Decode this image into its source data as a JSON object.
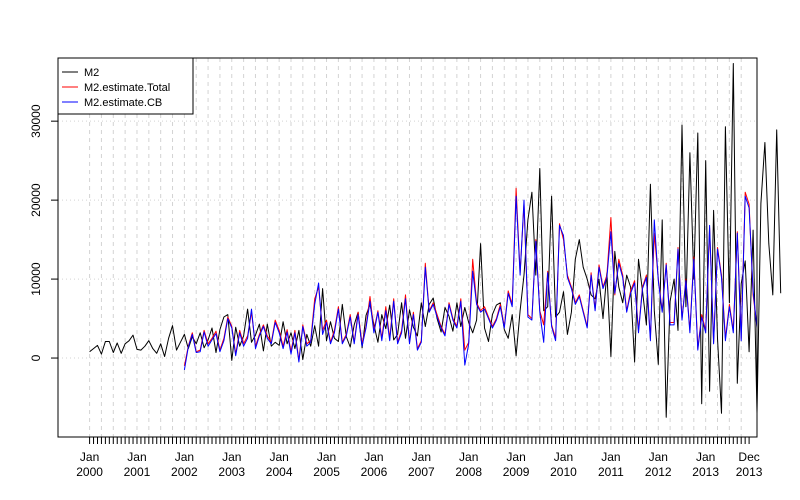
{
  "chart_data": {
    "type": "line",
    "title": "",
    "xlabel": "",
    "ylabel": "",
    "x_start": "2000-01",
    "x_end": "2013-12",
    "frequency": "monthly",
    "ylim": [
      -10000,
      38000
    ],
    "yticks": [
      0,
      10000,
      20000,
      30000
    ],
    "ytick_labels": [
      "0",
      "10000",
      "20000",
      "30000"
    ],
    "xtick_labels": [
      {
        "date": "2000-01",
        "month": "Jan",
        "year": "2000"
      },
      {
        "date": "2001-01",
        "month": "Jan",
        "year": "2001"
      },
      {
        "date": "2002-01",
        "month": "Jan",
        "year": "2002"
      },
      {
        "date": "2003-01",
        "month": "Jan",
        "year": "2003"
      },
      {
        "date": "2004-01",
        "month": "Jan",
        "year": "2004"
      },
      {
        "date": "2005-01",
        "month": "Jan",
        "year": "2005"
      },
      {
        "date": "2006-01",
        "month": "Jan",
        "year": "2006"
      },
      {
        "date": "2007-01",
        "month": "Jan",
        "year": "2007"
      },
      {
        "date": "2008-01",
        "month": "Jan",
        "year": "2008"
      },
      {
        "date": "2009-01",
        "month": "Jan",
        "year": "2009"
      },
      {
        "date": "2010-01",
        "month": "Jan",
        "year": "2010"
      },
      {
        "date": "2011-01",
        "month": "Jan",
        "year": "2011"
      },
      {
        "date": "2012-01",
        "month": "Jan",
        "year": "2012"
      },
      {
        "date": "2013-01",
        "month": "Jan",
        "year": "2013"
      },
      {
        "date": "2013-12",
        "month": "Dec",
        "year": "2013"
      }
    ],
    "grid": true,
    "legend_position": "top-left",
    "series": [
      {
        "name": "M2",
        "color": "#000000",
        "start": "2000-01",
        "values": [
          800,
          1200,
          1600,
          500,
          2100,
          2100,
          700,
          1900,
          600,
          1800,
          2200,
          2900,
          1100,
          1000,
          1500,
          2200,
          1200,
          600,
          1800,
          200,
          2500,
          4100,
          1000,
          2000,
          3000,
          1200,
          2700,
          1800,
          3200,
          1300,
          2300,
          3800,
          700,
          3600,
          5200,
          5500,
          -300,
          3900,
          1500,
          2800,
          6200,
          2000,
          2900,
          4300,
          900,
          4300,
          1500,
          2000,
          1600,
          4600,
          1800,
          3200,
          1200,
          3500,
          -200,
          3000,
          1500,
          4100,
          1500,
          8800,
          2200,
          4600,
          2500,
          2100,
          6800,
          2700,
          1400,
          4200,
          5800,
          1300,
          5400,
          6800,
          4200,
          2000,
          5500,
          3700,
          6700,
          2300,
          3000,
          7000,
          2500,
          6100,
          3900,
          2800,
          7000,
          4000,
          6800,
          7600,
          5000,
          3300,
          6400,
          5300,
          3400,
          7000,
          4000,
          6400,
          4500,
          3200,
          4800,
          14500,
          3800,
          2100,
          5500,
          6700,
          7000,
          3600,
          2500,
          5500,
          300,
          6000,
          10500,
          17500,
          21000,
          10500,
          24000,
          6000,
          6500,
          20500,
          5200,
          5800,
          8400,
          3000,
          5800,
          12500,
          15000,
          11500,
          10000,
          8000,
          7500,
          10000,
          5000,
          10800,
          200,
          13500,
          9000,
          7000,
          10500,
          9000,
          -500,
          12500,
          8500,
          4200,
          22000,
          6000,
          -800,
          17500,
          -7500,
          7200,
          10000,
          3500,
          29500,
          6500,
          26000,
          10000,
          28500,
          -5800,
          25000,
          -4200,
          18700,
          2500,
          -7000,
          29300,
          7000,
          37300,
          -3200,
          9400,
          12300,
          800,
          16200,
          -7000,
          19600,
          27300,
          14500,
          8000,
          28900,
          8200
        ]
      },
      {
        "name": "M2.estimate.Total",
        "color": "#ff0000",
        "start": "2002-01",
        "values": [
          -1000,
          1500,
          3200,
          800,
          1000,
          3500,
          1800,
          2500,
          3400,
          1000,
          2500,
          5200,
          4000,
          500,
          3500,
          1800,
          2800,
          5800,
          1500,
          3000,
          4200,
          2800,
          2000,
          4800,
          3500,
          1500,
          3600,
          800,
          3500,
          -300,
          4200,
          1800,
          2200,
          7500,
          9000,
          3500,
          4800,
          2000,
          3500,
          6500,
          2000,
          3000,
          5500,
          2000,
          5800,
          1800,
          4000,
          7800,
          3500,
          6000,
          2500,
          6500,
          2500,
          7500,
          2000,
          3500,
          8000,
          2000,
          5800,
          1200,
          2200,
          12000,
          6000,
          7000,
          5500,
          4000,
          3000,
          7000,
          5000,
          4000,
          7500,
          1000,
          2000,
          12500,
          7000,
          6000,
          6500,
          5200,
          4000,
          5000,
          6800,
          4000,
          8500,
          6800,
          21500,
          10800,
          19500,
          5500,
          5000,
          15000,
          6000,
          4200,
          11000,
          4200,
          2500,
          17000,
          15000,
          10500,
          9000,
          7000,
          8000,
          6000,
          4000,
          10800,
          6200,
          11800,
          9000,
          10500,
          17800,
          8000,
          12500,
          10500,
          6000,
          8500,
          9800,
          3500,
          9000,
          10500,
          2500,
          15800,
          10000,
          6000,
          12000,
          4500,
          4500,
          14000,
          5000,
          10000,
          3500,
          12800,
          1200,
          5500,
          3500,
          16500,
          2000,
          14000,
          10500,
          2500,
          6800,
          3500,
          16000,
          2500,
          21000,
          19500,
          8000,
          4000
        ]
      },
      {
        "name": "M2.estimate.CB",
        "color": "#0000ff",
        "start": "2002-01",
        "values": [
          -1500,
          1400,
          3000,
          700,
          800,
          3300,
          1500,
          2300,
          3100,
          800,
          2200,
          5000,
          3800,
          300,
          3200,
          1500,
          2500,
          6200,
          1200,
          2800,
          4000,
          2500,
          1800,
          4500,
          3200,
          1200,
          3300,
          500,
          3200,
          -500,
          4000,
          1500,
          2000,
          6800,
          9500,
          3000,
          4500,
          1800,
          3200,
          6200,
          1800,
          2800,
          5200,
          1800,
          5500,
          1500,
          3800,
          7200,
          3200,
          5800,
          2200,
          6000,
          2200,
          7200,
          1800,
          3200,
          7500,
          1800,
          5500,
          1000,
          2000,
          11500,
          5800,
          6800,
          5200,
          3800,
          2800,
          6800,
          4800,
          3800,
          7200,
          -900,
          1800,
          11000,
          6800,
          5800,
          6200,
          5000,
          3800,
          4800,
          6500,
          3800,
          8200,
          6500,
          20500,
          10500,
          20000,
          5200,
          4800,
          14800,
          5800,
          2000,
          10800,
          4000,
          2200,
          16800,
          15500,
          10200,
          8800,
          6800,
          7800,
          5800,
          3800,
          10500,
          6000,
          11500,
          8800,
          10200,
          16000,
          8200,
          12000,
          10200,
          5800,
          8200,
          9500,
          3200,
          8800,
          10200,
          2200,
          17500,
          9800,
          5800,
          11800,
          4200,
          4200,
          13800,
          4800,
          9800,
          3200,
          12500,
          1000,
          5200,
          3200,
          16800,
          1800,
          13800,
          10200,
          2200,
          6500,
          3200,
          15800,
          2200,
          20500,
          19000,
          8500,
          3800
        ]
      }
    ]
  }
}
